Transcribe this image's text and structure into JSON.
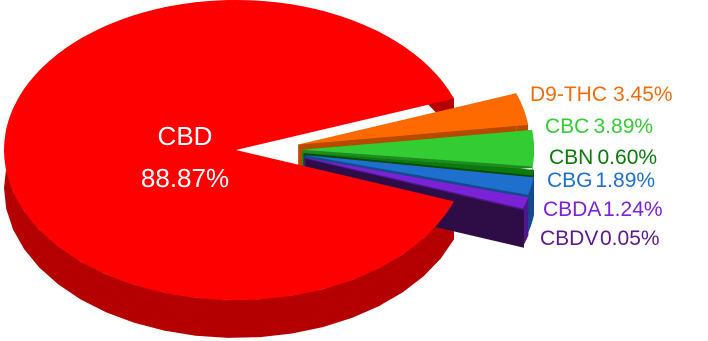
{
  "chart_data": {
    "type": "pie",
    "title": "",
    "series": [
      {
        "name": "CBD",
        "value": 88.87,
        "label": "88.87%",
        "color": "#ff0000",
        "dark": "#b40000"
      },
      {
        "name": "D9-THC",
        "value": 3.45,
        "label": "3.45%",
        "color": "#ff6a00",
        "dark": "#b84a00"
      },
      {
        "name": "CBC",
        "value": 3.89,
        "label": "3.89%",
        "color": "#33cc33",
        "dark": "#1f8a1f"
      },
      {
        "name": "CBN",
        "value": 0.6,
        "label": "0.60%",
        "color": "#0a7a0a",
        "dark": "#064a06"
      },
      {
        "name": "CBG",
        "value": 1.89,
        "label": "1.89%",
        "color": "#1f6fcf",
        "dark": "#134a8c"
      },
      {
        "name": "CBDA",
        "value": 1.24,
        "label": "1.24%",
        "color": "#7a22d6",
        "dark": "#4f1590"
      },
      {
        "name": "CBDV",
        "value": 0.05,
        "label": "0.05%",
        "color": "#5b1a8c",
        "dark": "#2e0d47"
      }
    ],
    "label_colors": {
      "D9-THC": "#f46c0a",
      "CBC": "#33cc33",
      "CBN": "#0a7a0a",
      "CBG": "#1f6fcf",
      "CBDA": "#7a22d6",
      "CBDV": "#5b1a8c"
    },
    "style": "3d-exploded",
    "legend": "none"
  }
}
